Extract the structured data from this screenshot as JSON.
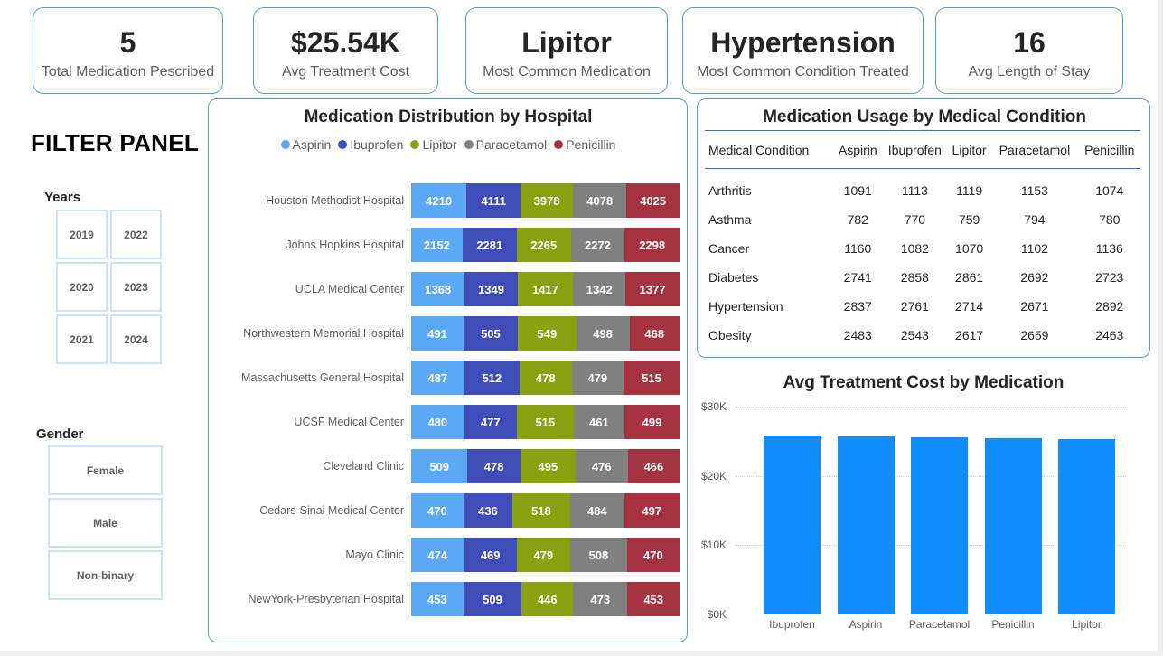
{
  "kpis": [
    {
      "value": "5",
      "label": "Total Medication Pescribed"
    },
    {
      "value": "$25.54K",
      "label": "Avg Treatment Cost"
    },
    {
      "value": "Lipitor",
      "label": "Most Common Medication"
    },
    {
      "value": "Hypertension",
      "label": "Most Common Condition Treated"
    },
    {
      "value": "16",
      "label": "Avg Length of Stay"
    }
  ],
  "filter_panel": {
    "title": "FILTER PANEL",
    "years_label": "Years",
    "years": [
      "2019",
      "2022",
      "2020",
      "2023",
      "2021",
      "2024"
    ],
    "gender_label": "Gender",
    "genders": [
      "Female",
      "Male",
      "Non-binary"
    ]
  },
  "colors": {
    "Aspirin": "#5ba8f5",
    "Ibuprofen": "#3f4db8",
    "Lipitor": "#8aa10f",
    "Paracetamol": "#808080",
    "Penicillin": "#a4323f",
    "column": "#118dff"
  },
  "chart_data": [
    {
      "type": "bar",
      "orientation": "horizontal",
      "stacked": true,
      "title": "Medication Distribution by Hospital",
      "legend_position": "top",
      "categories": [
        "Houston Methodist Hospital",
        "Johns Hopkins Hospital",
        "UCLA Medical Center",
        "Northwestern Memorial Hospital",
        "Massachusetts General Hospital",
        "UCSF Medical Center",
        "Cleveland Clinic",
        "Cedars-Sinai Medical Center",
        "Mayo Clinic",
        "NewYork-Presbyterian Hospital"
      ],
      "series": [
        {
          "name": "Aspirin",
          "values": [
            4210,
            2152,
            1368,
            491,
            487,
            480,
            509,
            470,
            474,
            453
          ]
        },
        {
          "name": "Ibuprofen",
          "values": [
            4111,
            2281,
            1349,
            505,
            512,
            477,
            478,
            436,
            469,
            509
          ]
        },
        {
          "name": "Lipitor",
          "values": [
            3978,
            2265,
            1417,
            549,
            478,
            515,
            495,
            518,
            479,
            446
          ]
        },
        {
          "name": "Paracetamol",
          "values": [
            4078,
            2272,
            1342,
            498,
            479,
            461,
            476,
            484,
            508,
            473
          ]
        },
        {
          "name": "Penicillin",
          "values": [
            4025,
            2298,
            1377,
            468,
            515,
            499,
            466,
            497,
            470,
            453
          ]
        }
      ]
    },
    {
      "type": "table",
      "title": "Medication Usage by Medical Condition",
      "columns": [
        "Medical Condition",
        "Aspirin",
        "Ibuprofen",
        "Lipitor",
        "Paracetamol",
        "Penicillin"
      ],
      "rows": [
        [
          "Arthritis",
          "1091",
          "1113",
          "1119",
          "1153",
          "1074"
        ],
        [
          "Asthma",
          "782",
          "770",
          "759",
          "794",
          "780"
        ],
        [
          "Cancer",
          "1160",
          "1082",
          "1070",
          "1102",
          "1136"
        ],
        [
          "Diabetes",
          "2741",
          "2858",
          "2861",
          "2692",
          "2723"
        ],
        [
          "Hypertension",
          "2837",
          "2761",
          "2714",
          "2671",
          "2892"
        ],
        [
          "Obesity",
          "2483",
          "2543",
          "2617",
          "2659",
          "2463"
        ]
      ]
    },
    {
      "type": "bar",
      "title": "Avg Treatment Cost by Medication",
      "categories": [
        "Ibuprofen",
        "Aspirin",
        "Paracetamol",
        "Penicillin",
        "Lipitor"
      ],
      "values": [
        25800,
        25650,
        25550,
        25450,
        25300
      ],
      "ylim": [
        0,
        30000
      ],
      "yticks": [
        "$0K",
        "$10K",
        "$20K",
        "$30K"
      ],
      "ytick_values": [
        0,
        10000,
        20000,
        30000
      ],
      "grid": true
    }
  ]
}
